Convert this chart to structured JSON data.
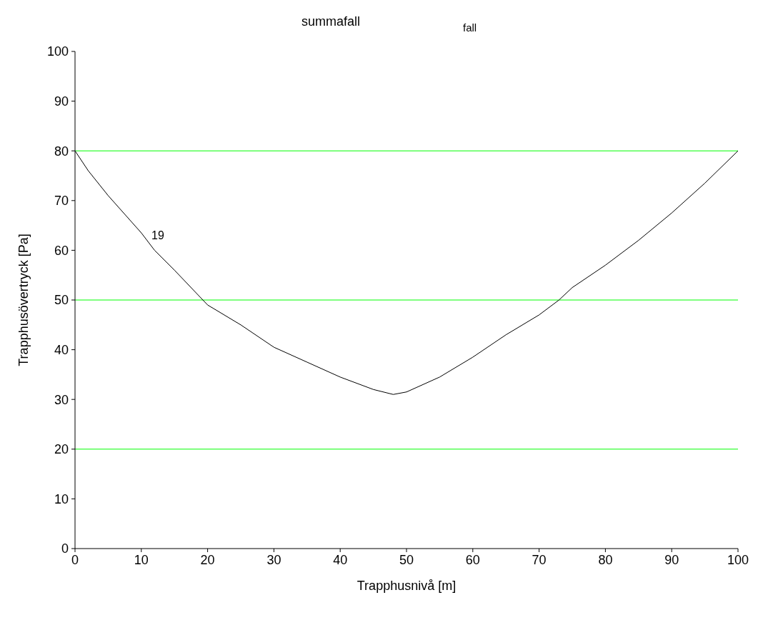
{
  "chart_data": {
    "type": "line",
    "title": "summafall",
    "xlabel": "Trapphusnivå  [m]",
    "ylabel": "Trapphusövertryck  [Pa]",
    "x": [
      0,
      2,
      5,
      10,
      12,
      15,
      20,
      25,
      30,
      35,
      40,
      45,
      48,
      50,
      55,
      60,
      65,
      70,
      73,
      75,
      80,
      85,
      90,
      95,
      100
    ],
    "series": [
      {
        "color": "#000000",
        "values": [
          80,
          76,
          71,
          63.5,
          60,
          56,
          49,
          45,
          40.5,
          37.5,
          34.5,
          32,
          31,
          31.5,
          34.5,
          38.5,
          43,
          47,
          50,
          52.5,
          57,
          62,
          67.5,
          73.5,
          80
        ]
      }
    ],
    "xlim": [
      0,
      100
    ],
    "ylim": [
      0,
      100
    ],
    "xticks": [
      0,
      10,
      20,
      30,
      40,
      50,
      60,
      70,
      80,
      90,
      100
    ],
    "yticks": [
      0,
      10,
      20,
      30,
      40,
      50,
      60,
      70,
      80,
      90,
      100
    ],
    "ref_lines": [
      {
        "axis": "y",
        "value": 80,
        "color": "#00ff00"
      },
      {
        "axis": "y",
        "value": 50,
        "color": "#00ff00"
      },
      {
        "axis": "y",
        "value": 20,
        "color": "#00ff00"
      }
    ],
    "annotations": [
      "fall",
      {
        "text": "19",
        "x": 11,
        "y": 63
      }
    ],
    "grid": false,
    "legend": false,
    "marker": "none",
    "line_style": "solid"
  }
}
